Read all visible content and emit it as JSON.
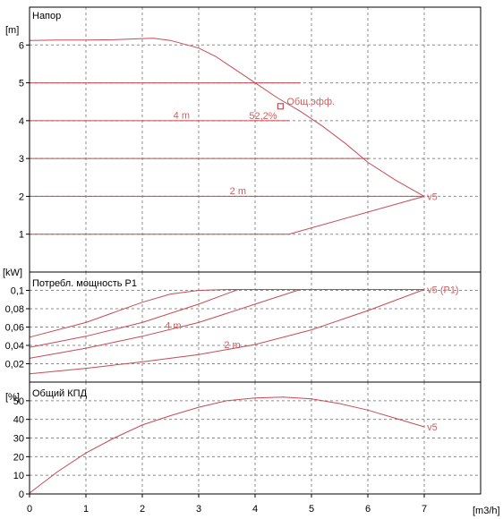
{
  "colors": {
    "curve": "#c84a55",
    "label": "#d0605f",
    "grid": "#8c8c8c",
    "frame": "#000000",
    "background": "#ffffff"
  },
  "x_axis": {
    "unit": "[m3/h]",
    "range": [
      0,
      8
    ],
    "ticks": [
      "0",
      "1",
      "2",
      "3",
      "4",
      "5",
      "6",
      "7"
    ]
  },
  "chart_data": [
    {
      "type": "line",
      "title": "Напор",
      "y_unit": "[m]",
      "ylim": [
        0,
        7
      ],
      "y_ticks": [
        "1",
        "2",
        "3",
        "4",
        "5",
        "6"
      ],
      "grid": true,
      "series": [
        {
          "name": "v5",
          "x": [
            0,
            0.5,
            1,
            1.5,
            2,
            2.2,
            2.5,
            2.8,
            3.0,
            3.3,
            3.6,
            4.0,
            4.4,
            4.8,
            5.2,
            5.6,
            6.0,
            6.5,
            7.0
          ],
          "y": [
            6.12,
            6.13,
            6.13,
            6.14,
            6.17,
            6.18,
            6.12,
            6.0,
            5.92,
            5.7,
            5.4,
            5.0,
            4.6,
            4.25,
            3.85,
            3.4,
            2.9,
            2.42,
            2.0
          ]
        },
        {
          "name": "4 m",
          "x": [
            0,
            4.6
          ],
          "y": [
            4.0,
            4.0
          ]
        },
        {
          "name": "2 m",
          "x": [
            0,
            7.0
          ],
          "y": [
            2.0,
            2.0
          ]
        },
        {
          "name": "",
          "x": [
            0,
            4.8
          ],
          "y": [
            5.0,
            5.0
          ]
        },
        {
          "name": "",
          "x": [
            0,
            6.0
          ],
          "y": [
            3.0,
            3.0
          ]
        },
        {
          "name": "",
          "x": [
            0,
            4.6,
            7.0
          ],
          "y": [
            1.0,
            1.0,
            2.0
          ]
        }
      ],
      "point": {
        "x": 4.45,
        "y": 4.38,
        "name": "Общ.эфф.",
        "value": "52,2%"
      },
      "labels": [
        {
          "text": "4 m",
          "x": 2.55,
          "y": 4.15
        },
        {
          "text": "2 m",
          "x": 3.55,
          "y": 2.15
        },
        {
          "text": "v5",
          "x": 7.05,
          "y": 2.0
        }
      ]
    },
    {
      "type": "line",
      "title": "Потребл. мощность P1",
      "y_unit": "[kW]",
      "ylim": [
        0,
        0.12
      ],
      "y_ticks": [
        "0,02",
        "0,04",
        "0,06",
        "0,08",
        "0,1"
      ],
      "grid": true,
      "series": [
        {
          "name": "v5 (P1)",
          "x": [
            0,
            1,
            2,
            2.5,
            3.0,
            3.5,
            4.0,
            5.0,
            6.0,
            7.0
          ],
          "y": [
            0.049,
            0.065,
            0.087,
            0.096,
            0.1,
            0.101,
            0.101,
            0.101,
            0.101,
            0.101
          ]
        },
        {
          "name": "4 m",
          "x": [
            0,
            1,
            2,
            3,
            3.7,
            4.5,
            7.0
          ],
          "y": [
            0.038,
            0.05,
            0.065,
            0.085,
            0.101,
            0.101,
            0.101
          ]
        },
        {
          "name": "",
          "x": [
            0,
            1,
            2,
            3,
            4,
            4.8,
            7.0
          ],
          "y": [
            0.026,
            0.037,
            0.05,
            0.065,
            0.085,
            0.101,
            0.101
          ]
        },
        {
          "name": "2 m",
          "x": [
            0,
            1,
            2,
            3,
            4,
            5,
            6,
            7.0
          ],
          "y": [
            0.009,
            0.015,
            0.022,
            0.03,
            0.041,
            0.057,
            0.078,
            0.101
          ]
        }
      ],
      "labels": [
        {
          "text": "4 m",
          "x": 2.4,
          "y": 0.062
        },
        {
          "text": "2 m",
          "x": 3.45,
          "y": 0.041
        },
        {
          "text": "v5 (P1)",
          "x": 7.05,
          "y": 0.101
        }
      ]
    },
    {
      "type": "line",
      "title": "Общий КПД",
      "y_unit": "[%]",
      "ylim": [
        0,
        60
      ],
      "y_ticks": [
        "0",
        "10",
        "20",
        "30",
        "40",
        "50"
      ],
      "grid": true,
      "series": [
        {
          "name": "v5",
          "x": [
            0,
            0.5,
            1,
            1.5,
            2,
            2.5,
            3,
            3.5,
            4,
            4.5,
            5,
            5.5,
            6,
            6.5,
            7.0
          ],
          "y": [
            0.5,
            12,
            22,
            30,
            37,
            42,
            46.5,
            50,
            51.5,
            52,
            51,
            48.5,
            45,
            40.5,
            36
          ]
        }
      ],
      "labels": [
        {
          "text": "v5",
          "x": 7.05,
          "y": 36
        }
      ]
    }
  ]
}
